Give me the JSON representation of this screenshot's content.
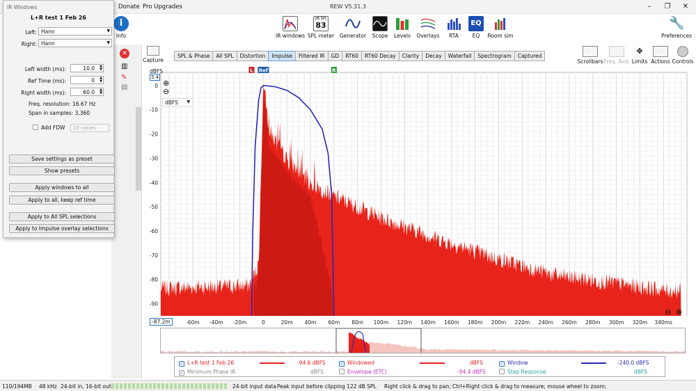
{
  "app": {
    "title": "REW V5.31.3",
    "menu": [
      "Donate",
      "Pro Upgrades"
    ]
  },
  "toolbar": {
    "info_label": "Info",
    "tools": [
      {
        "label": "IR windows",
        "icon": "ir-windows-icon"
      },
      {
        "label": "SPL meter",
        "icon": "spl-meter-icon",
        "badge": "dB SPL",
        "value": "83"
      },
      {
        "label": "Generator",
        "icon": "generator-icon"
      },
      {
        "label": "Scope",
        "icon": "scope-icon"
      },
      {
        "label": "Levels",
        "icon": "levels-icon"
      },
      {
        "label": "Overlays",
        "icon": "overlays-icon"
      },
      {
        "label": "RTA",
        "icon": "rta-icon"
      },
      {
        "label": "EQ",
        "icon": "eq-icon"
      },
      {
        "label": "Room sim",
        "icon": "room-sim-icon"
      }
    ],
    "preferences_label": "Preferences",
    "right_tools": [
      "Scrollbars",
      "Freq. Axis",
      "Limits",
      "Actions",
      "Controls"
    ],
    "capture_label": "Capture"
  },
  "tabs": [
    "SPL & Phase",
    "All SPL",
    "Distortion",
    "Impulse",
    "Filtered IR",
    "GD",
    "RT60",
    "RT60 Decay",
    "Clarity",
    "Decay",
    "Waterfall",
    "Spectrogram",
    "Captured"
  ],
  "active_tab": "Impulse",
  "dialog": {
    "title": "IR Windows",
    "measurement": "L+R test 1 Feb 26",
    "left_label": "Left:",
    "left_value": "Hann",
    "right_label": "Right:",
    "right_value": "Hann",
    "left_width_label": "Left width (ms):",
    "left_width": "10.0",
    "ref_time_label": "Ref Time (ms):",
    "ref_time": "0",
    "right_width_label": "Right width (ms):",
    "right_width": "60.0",
    "freq_res": "Freq. resolution: 16.67 Hz",
    "span": "Span in samples: 3,360",
    "fdw_label": "Add FDW",
    "fdw_value": "15 cycles",
    "buttons": [
      "Save settings as preset",
      "Show presets",
      "Apply windows to all",
      "Apply to all, keep ref time",
      "Apply to All SPL selections",
      "Apply to Impulse overlay selections"
    ]
  },
  "plot": {
    "unit_label": "dBFS",
    "unit_select": "dBFS",
    "top_value": "5.4",
    "left_value": "-87.2m",
    "markers": [
      "L",
      "Ref",
      "R"
    ]
  },
  "chart_data": {
    "type": "area",
    "ylabel": "dBFS",
    "xlim_ms": [
      -87.2,
      360
    ],
    "ylim": [
      -95,
      5.4
    ],
    "yticks": [
      0,
      -10,
      -20,
      -30,
      -40,
      -50,
      -60,
      -70,
      -80,
      -90
    ],
    "xtick_labels": [
      "-60m",
      "-40m",
      "-20m",
      "0",
      "20m",
      "40m",
      "60m",
      "80m",
      "100m",
      "120m",
      "140m",
      "160m",
      "180m",
      "200m",
      "220m",
      "240m",
      "260m",
      "280m",
      "300m",
      "320m",
      "340ms"
    ],
    "xtick_values": [
      -60,
      -40,
      -20,
      0,
      20,
      40,
      60,
      80,
      100,
      120,
      140,
      160,
      180,
      200,
      220,
      240,
      260,
      280,
      300,
      320,
      340
    ],
    "series": [
      {
        "name": "L+R test 1 Feb 26",
        "color": "#e8231a",
        "envelope": [
          [
            -87,
            -85
          ],
          [
            -12,
            -84
          ],
          [
            -4,
            -75
          ],
          [
            0,
            0
          ],
          [
            5,
            -20
          ],
          [
            20,
            -32
          ],
          [
            40,
            -42
          ],
          [
            60,
            -47
          ],
          [
            100,
            -56
          ],
          [
            150,
            -65
          ],
          [
            200,
            -73
          ],
          [
            250,
            -80
          ],
          [
            300,
            -83
          ],
          [
            340,
            -86
          ],
          [
            355,
            -86
          ]
        ]
      },
      {
        "name": "Window",
        "color": "#2a2ab0",
        "points": [
          [
            -10,
            -95
          ],
          [
            -9,
            -60
          ],
          [
            -7,
            -25
          ],
          [
            -4,
            -6
          ],
          [
            -2,
            -1
          ],
          [
            0,
            0
          ],
          [
            10,
            -0.5
          ],
          [
            20,
            -2
          ],
          [
            30,
            -5
          ],
          [
            40,
            -10
          ],
          [
            50,
            -18
          ],
          [
            55,
            -28
          ],
          [
            58,
            -45
          ],
          [
            60,
            -95
          ]
        ]
      }
    ],
    "grid": true
  },
  "legend": {
    "items": [
      {
        "label": "L+R test 1 Feb 26",
        "value": "-94.6 dBFS",
        "checked": true,
        "color": "#e8231a"
      },
      {
        "label": "Minimum Phase IR",
        "value": "dBFS",
        "checked": true,
        "color": "#888888"
      },
      {
        "label": "Windowed",
        "value": "dBFS",
        "checked": true,
        "color": "#e8231a"
      },
      {
        "label": "Envelope (ETC)",
        "value": "-94.4 dBFS",
        "checked": false,
        "color": "#d42bd4"
      },
      {
        "label": "Window",
        "value": "-240.0 dBFS",
        "checked": true,
        "color": "#2a2ab0"
      },
      {
        "label": "Step Response",
        "value": "dBFS",
        "checked": false,
        "color": "#2a9fa0"
      }
    ]
  },
  "status": {
    "memory": "110/194MB",
    "rate": "48 kHz",
    "bits": "24-bit in, 16-bit out",
    "input": "24-bit input data",
    "peak": "Peak input before clipping 122 dB SPL",
    "hint": "Right click & drag to pan; Ctrl+Right click & drag to measure; mouse wheel to zoom;"
  }
}
